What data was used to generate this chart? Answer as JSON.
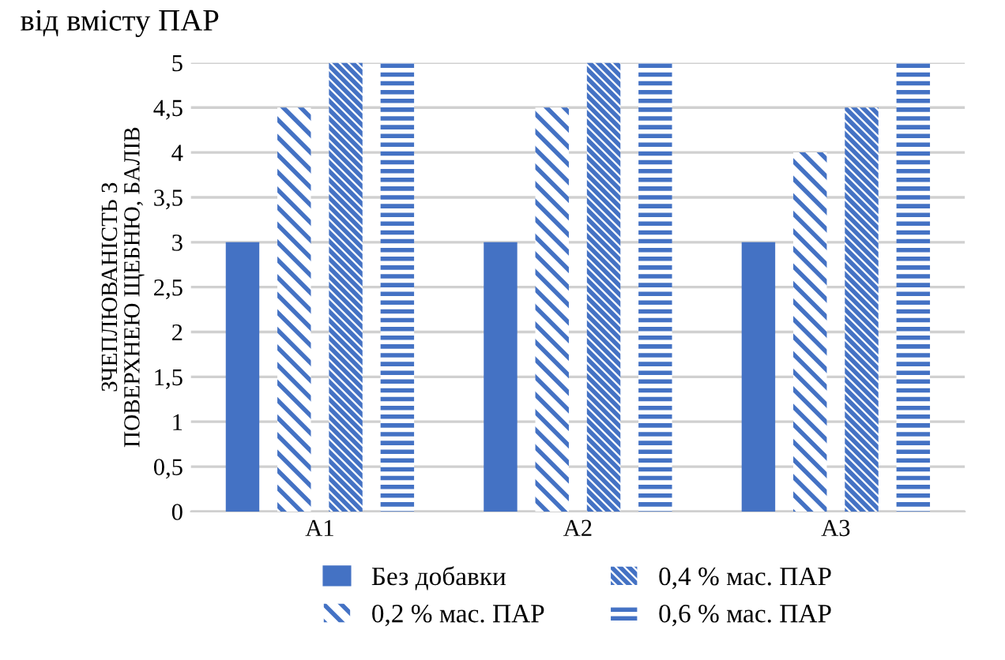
{
  "chart_data": {
    "type": "bar",
    "title": "від вмісту ПАР",
    "ylabel": "ЗЧЕПЛЮВАНІСТЬ З ПОВЕРХНЕЮ ЩЕБНЮ, БАЛІВ",
    "categories": [
      "A1",
      "A2",
      "A3"
    ],
    "series": [
      {
        "name": "Без добавки",
        "color": "#4472c4",
        "values": [
          3,
          3,
          3
        ]
      },
      {
        "name": "0,2 % мас. ПАР",
        "color": "#4472c4",
        "values": [
          4.5,
          4.5,
          4
        ]
      },
      {
        "name": "0,4 % мас. ПАР",
        "color": "#4472c4",
        "values": [
          5,
          5,
          4.5
        ]
      },
      {
        "name": "0,6 % мас. ПАР",
        "color": "#4472c4",
        "values": [
          5,
          5,
          5
        ]
      }
    ],
    "ylim": [
      0,
      5
    ],
    "yticks": [
      0,
      {
        "value": 0.5,
        "label": "0,5"
      },
      1,
      {
        "value": 1.5,
        "label": "1,5"
      },
      2,
      {
        "value": 2.5,
        "label": "2,5"
      },
      3,
      {
        "value": 3.5,
        "label": "3,5"
      },
      4,
      {
        "value": 4.5,
        "label": "4,5"
      },
      5
    ],
    "grid": "y",
    "legend": "bottom"
  }
}
